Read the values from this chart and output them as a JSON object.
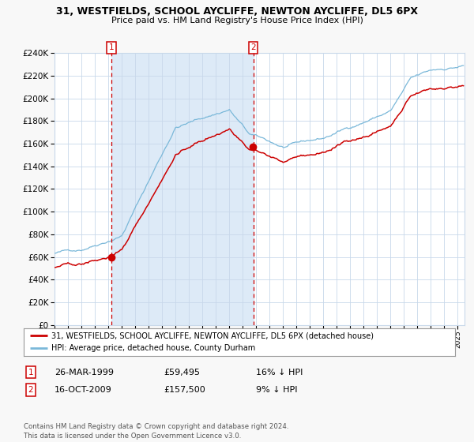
{
  "title": "31, WESTFIELDS, SCHOOL AYCLIFFE, NEWTON AYCLIFFE, DL5 6PX",
  "subtitle": "Price paid vs. HM Land Registry's House Price Index (HPI)",
  "ylim": [
    0,
    240000
  ],
  "yticks": [
    0,
    20000,
    40000,
    60000,
    80000,
    100000,
    120000,
    140000,
    160000,
    180000,
    200000,
    220000,
    240000
  ],
  "hpi_color": "#7ab8d9",
  "price_color": "#cc0000",
  "shade_color": "#ddeaf7",
  "marker_color": "#cc0000",
  "vline_color": "#cc0000",
  "point1": {
    "date_idx": 1999.23,
    "value": 59495,
    "label": "1"
  },
  "point2": {
    "date_idx": 2009.79,
    "value": 157500,
    "label": "2"
  },
  "legend_entry1": "31, WESTFIELDS, SCHOOL AYCLIFFE, NEWTON AYCLIFFE, DL5 6PX (detached house)",
  "legend_entry2": "HPI: Average price, detached house, County Durham",
  "table_row1": [
    "1",
    "26-MAR-1999",
    "£59,495",
    "16% ↓ HPI"
  ],
  "table_row2": [
    "2",
    "16-OCT-2009",
    "£157,500",
    "9% ↓ HPI"
  ],
  "footnote": "Contains HM Land Registry data © Crown copyright and database right 2024.\nThis data is licensed under the Open Government Licence v3.0.",
  "xstart": 1995.0,
  "xend": 2025.5
}
